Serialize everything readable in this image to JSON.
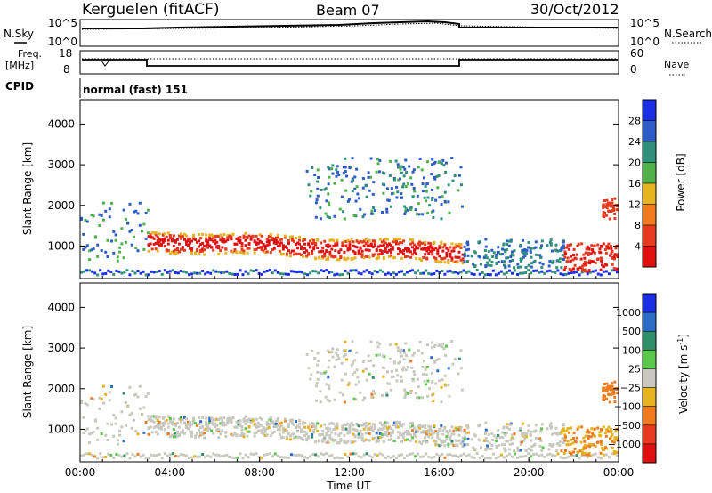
{
  "header": {
    "station": "Kerguelen (fitACF)",
    "beam": "Beam 07",
    "date": "30/Oct/2012"
  },
  "panels": {
    "sky": {
      "left_label": "N.Sky",
      "right_label": "N.Search",
      "left_ticks": [
        "10^5",
        "10^0"
      ],
      "right_ticks": [
        "10^5",
        "10^0"
      ]
    },
    "freq": {
      "left_label": "Freq.",
      "left_unit": "[MHz]",
      "right_label": "Nave",
      "left_ticks": [
        "18",
        "8"
      ],
      "right_ticks": [
        "60",
        "0"
      ]
    },
    "cpid": {
      "label": "CPID",
      "value": "normal (fast) 151"
    }
  },
  "chart_data": [
    {
      "type": "heatmap",
      "title": "",
      "ylabel": "Slant Range [km]",
      "yticks": [
        1000,
        2000,
        3000,
        4000
      ],
      "ylim": [
        200,
        4600
      ],
      "colorbar": {
        "label": "Power [dB]",
        "ticks": [
          "4",
          "8",
          "12",
          "16",
          "20",
          "24",
          "28"
        ],
        "colors": [
          "#1a2ee6",
          "#2d5cc6",
          "#2f8f7a",
          "#4fb04a",
          "#e6b21e",
          "#f07a1e",
          "#e83a1e",
          "#e01010"
        ]
      }
    },
    {
      "type": "heatmap",
      "title": "",
      "xlabel": "Time UT",
      "ylabel": "Slant Range [km]",
      "xticks": [
        "00:00",
        "04:00",
        "08:00",
        "12:00",
        "16:00",
        "20:00",
        "00:00"
      ],
      "yticks": [
        1000,
        2000,
        3000,
        4000
      ],
      "ylim": [
        200,
        4600
      ],
      "colorbar": {
        "label": "Velocity",
        "unit": "[m s",
        "unit_exp": "-1",
        "unit_close": "]",
        "ticks": [
          "1000",
          "500",
          "100",
          "25",
          "−25",
          "−100",
          "−500",
          "−1000"
        ],
        "colors": [
          "#1a2ee6",
          "#2d6cc6",
          "#2f8f6a",
          "#5ac84a",
          "#c8c8c0",
          "#e6b21e",
          "#f07a1e",
          "#e83a1e",
          "#e01010"
        ]
      }
    }
  ]
}
